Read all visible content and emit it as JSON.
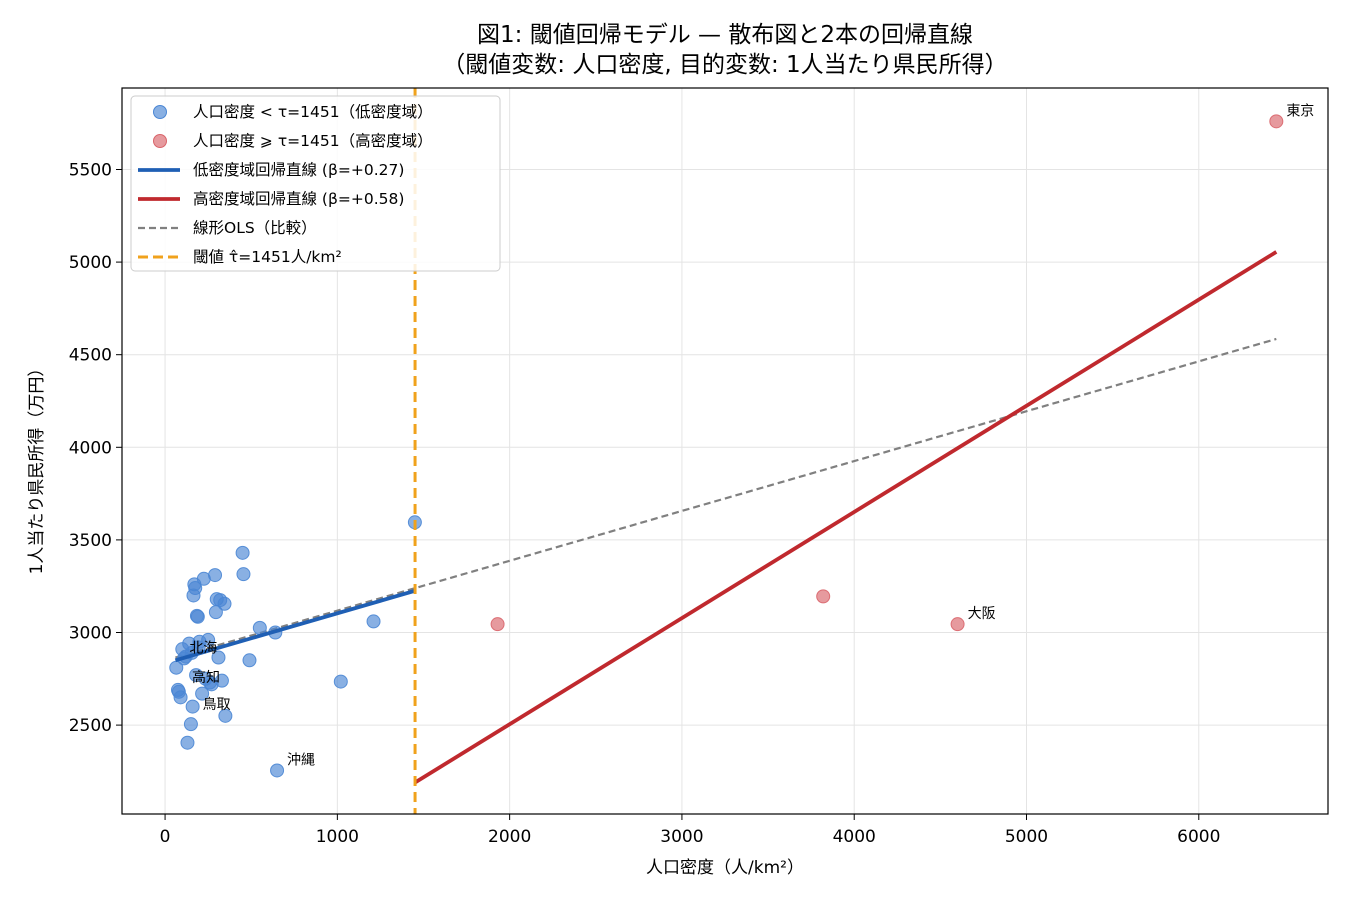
{
  "chart_data": {
    "type": "scatter",
    "title": "図1: 閾値回帰モデル — 散布図と2本の回帰直線",
    "subtitle": "（閾値変数: 人口密度, 目的変数: 1人当たり県民所得）",
    "xlabel": "人口密度（人/km²）",
    "ylabel": "1人当たり県民所得（万円）",
    "xlim": [
      -250,
      6750
    ],
    "ylim": [
      2020,
      5940
    ],
    "xticks": [
      0,
      1000,
      2000,
      3000,
      4000,
      5000,
      6000
    ],
    "yticks": [
      2500,
      3000,
      3500,
      4000,
      4500,
      5000,
      5500
    ],
    "grid": true,
    "legend_position": "top-left",
    "threshold": 1451,
    "series": [
      {
        "name": "人口密度 < τ=1451（低密度域）",
        "kind": "scatter",
        "color": "#4a86d4",
        "points": [
          [
            65,
            2810
          ],
          [
            75,
            2690
          ],
          [
            80,
            2680
          ],
          [
            90,
            2650
          ],
          [
            100,
            2910
          ],
          [
            110,
            2860
          ],
          [
            120,
            2870
          ],
          [
            130,
            2405
          ],
          [
            140,
            2940
          ],
          [
            150,
            2505
          ],
          [
            155,
            2890
          ],
          [
            160,
            2600
          ],
          [
            165,
            3200
          ],
          [
            170,
            3260
          ],
          [
            175,
            3240
          ],
          [
            180,
            2770
          ],
          [
            185,
            3090
          ],
          [
            190,
            3085
          ],
          [
            195,
            2920
          ],
          [
            200,
            2950
          ],
          [
            215,
            2670
          ],
          [
            225,
            3290
          ],
          [
            235,
            2750
          ],
          [
            250,
            2960
          ],
          [
            260,
            2730
          ],
          [
            270,
            2720
          ],
          [
            290,
            3310
          ],
          [
            295,
            3110
          ],
          [
            300,
            3180
          ],
          [
            310,
            2865
          ],
          [
            320,
            3175
          ],
          [
            330,
            2740
          ],
          [
            345,
            3155
          ],
          [
            350,
            2550
          ],
          [
            450,
            3430
          ],
          [
            455,
            3315
          ],
          [
            490,
            2850
          ],
          [
            550,
            3025
          ],
          [
            640,
            3000
          ],
          [
            650,
            2255
          ],
          [
            1020,
            2735
          ],
          [
            1210,
            3060
          ],
          [
            1450,
            3595
          ]
        ]
      },
      {
        "name": "人口密度 ⩾ τ=1451（高密度域）",
        "kind": "scatter",
        "color": "#d9646a",
        "points": [
          [
            1930,
            3045
          ],
          [
            3820,
            3195
          ],
          [
            4600,
            3045
          ],
          [
            6450,
            5760
          ]
        ]
      },
      {
        "name": "低密度域回帰直線 (β=+0.27)",
        "kind": "line",
        "color": "#1f5fb4",
        "points": [
          [
            60,
            2850
          ],
          [
            1450,
            3225
          ]
        ]
      },
      {
        "name": "高密度域回帰直線 (β=+0.58)",
        "kind": "line",
        "color": "#c0292e",
        "points": [
          [
            1451,
            2190
          ],
          [
            6450,
            5055
          ]
        ]
      },
      {
        "name": "線形OLS（比較）",
        "kind": "dashed-line",
        "color": "#808080",
        "points": [
          [
            60,
            2865
          ],
          [
            6450,
            4585
          ]
        ]
      }
    ],
    "threshold_line": {
      "name": "閾値 τ̂=1451人/km²",
      "color": "#f0a21c"
    },
    "annotations": [
      {
        "text": "東京",
        "x": 6450,
        "y": 5760
      },
      {
        "text": "大阪",
        "x": 4600,
        "y": 3045
      },
      {
        "text": "北海",
        "x": 83,
        "y": 2860
      },
      {
        "text": "高知",
        "x": 98,
        "y": 2700
      },
      {
        "text": "鳥取",
        "x": 160,
        "y": 2555
      },
      {
        "text": "沖縄",
        "x": 650,
        "y": 2255
      }
    ]
  }
}
